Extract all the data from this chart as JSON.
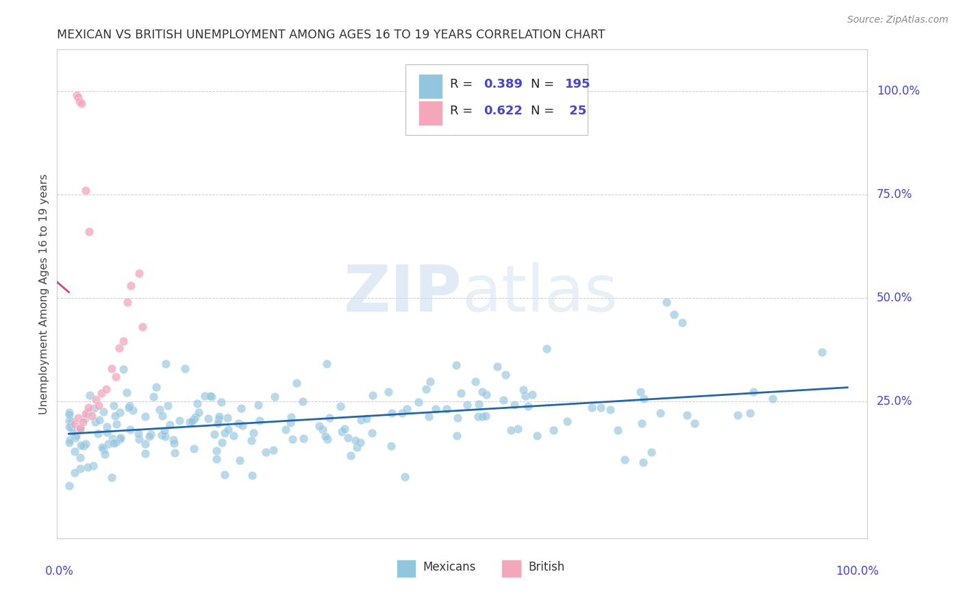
{
  "title": "MEXICAN VS BRITISH UNEMPLOYMENT AMONG AGES 16 TO 19 YEARS CORRELATION CHART",
  "source": "Source: ZipAtlas.com",
  "ylabel": "Unemployment Among Ages 16 to 19 years",
  "ylabel_right_ticks": [
    "100.0%",
    "75.0%",
    "50.0%",
    "25.0%"
  ],
  "ylabel_right_vals": [
    1.0,
    0.75,
    0.5,
    0.25
  ],
  "xlim": [
    0,
    1
  ],
  "ylim": [
    -0.08,
    1.1
  ],
  "r_mexican": 0.389,
  "n_mexican": 195,
  "r_british": 0.622,
  "n_british": 25,
  "color_mexican": "#92c5de",
  "color_british": "#f4a6ba",
  "color_trend_mexican": "#2166ac",
  "color_trend_british": "#d6447a",
  "watermark_color": "#dce8f5",
  "title_color": "#333333",
  "source_color": "#888888",
  "axis_label_color": "#4444cc",
  "legend_text_color": "#222222",
  "grid_color": "#dddddd",
  "mex_seed": 42,
  "brit_seed": 99,
  "bottom_legend_labels": [
    "Mexicans",
    "British"
  ]
}
